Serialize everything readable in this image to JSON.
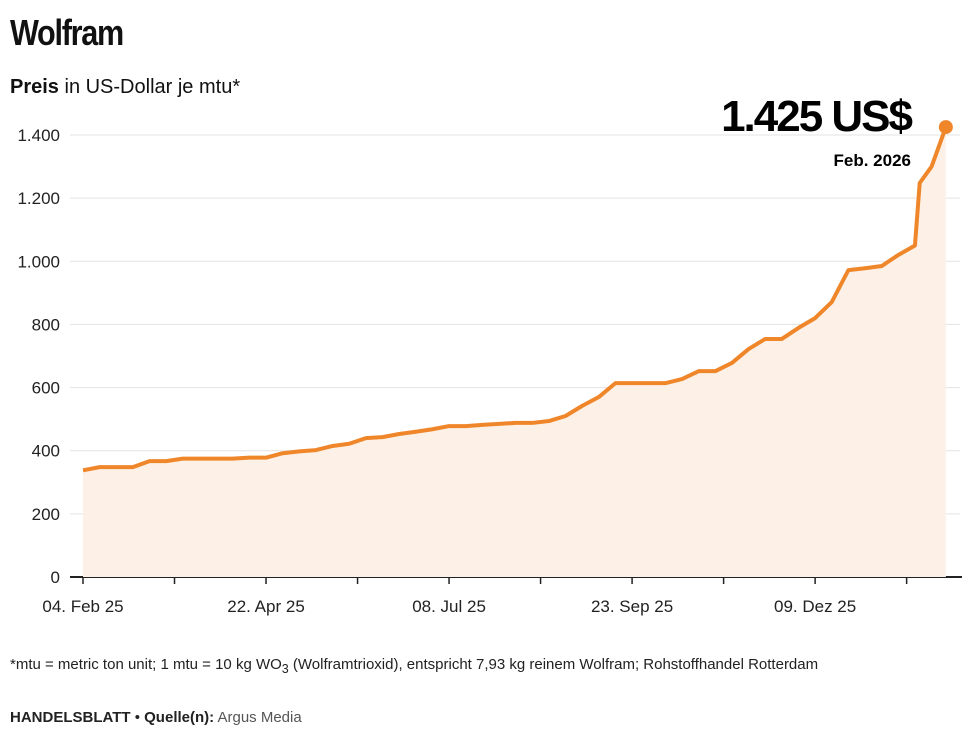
{
  "title": "Wolfram",
  "subtitle_bold": "Preis",
  "subtitle_rest": " in US-Dollar je mtu*",
  "callout": {
    "value": "1.425 US$",
    "date": "Feb. 2026"
  },
  "note_pre": "*mtu = metric ton unit; 1 mtu = 10 kg WO",
  "note_sub": "3",
  "note_post": " (Wolframtrioxid), entspricht 7,93 kg reinem Wolfram; Rohstoffhandel Rotterdam",
  "source": {
    "brand": "HANDELSBLATT",
    "sep": " • ",
    "label": "Quelle(n):",
    "value": " Argus Media"
  },
  "colors": {
    "line": "#f0862a",
    "fill": "#fdf1e7",
    "grid": "#e3e3e3"
  },
  "chart_data": {
    "type": "area",
    "title": "Wolfram",
    "ylabel": "Preis in US-Dollar je mtu",
    "xlabel": "",
    "ylim": [
      0,
      1400
    ],
    "yticks": [
      0,
      200,
      400,
      600,
      800,
      1000,
      1200,
      1400
    ],
    "ytick_labels": [
      "0",
      "200",
      "400",
      "600",
      "800",
      "1.000",
      "1.200",
      "1.400"
    ],
    "xtick_labels": [
      {
        "day": 0,
        "label": "04. Feb 25"
      },
      {
        "day": 77,
        "label": "22. Apr 25"
      },
      {
        "day": 154,
        "label": "08. Jul 25"
      },
      {
        "day": 231,
        "label": "23. Sep 25"
      },
      {
        "day": 308,
        "label": "09. Dez 25"
      }
    ],
    "xminor_days": [
      0,
      38.5,
      77,
      115.5,
      154,
      192.5,
      231,
      269.5,
      308,
      346.5
    ],
    "x_unit": "days since 04. Feb 25",
    "x": [
      0,
      7,
      14,
      21,
      28,
      35,
      42,
      49,
      56,
      63,
      70,
      77,
      84,
      91,
      98,
      105,
      112,
      119,
      126,
      133,
      140,
      147,
      154,
      161,
      168,
      175,
      182,
      189,
      196,
      203,
      210,
      217,
      224,
      231,
      238,
      245,
      252,
      259,
      266,
      273,
      280,
      287,
      294,
      301,
      308,
      315,
      322,
      329,
      336,
      343,
      350,
      352,
      357,
      363
    ],
    "values": [
      338,
      348,
      348,
      348,
      367,
      367,
      375,
      375,
      375,
      375,
      378,
      378,
      392,
      398,
      402,
      415,
      422,
      440,
      443,
      453,
      460,
      468,
      478,
      478,
      482,
      485,
      488,
      488,
      494,
      510,
      542,
      570,
      614,
      614,
      614,
      614,
      627,
      652,
      652,
      678,
      722,
      754,
      754,
      789,
      820,
      871,
      972,
      978,
      985,
      1020,
      1050,
      1248,
      1300,
      1425
    ]
  }
}
